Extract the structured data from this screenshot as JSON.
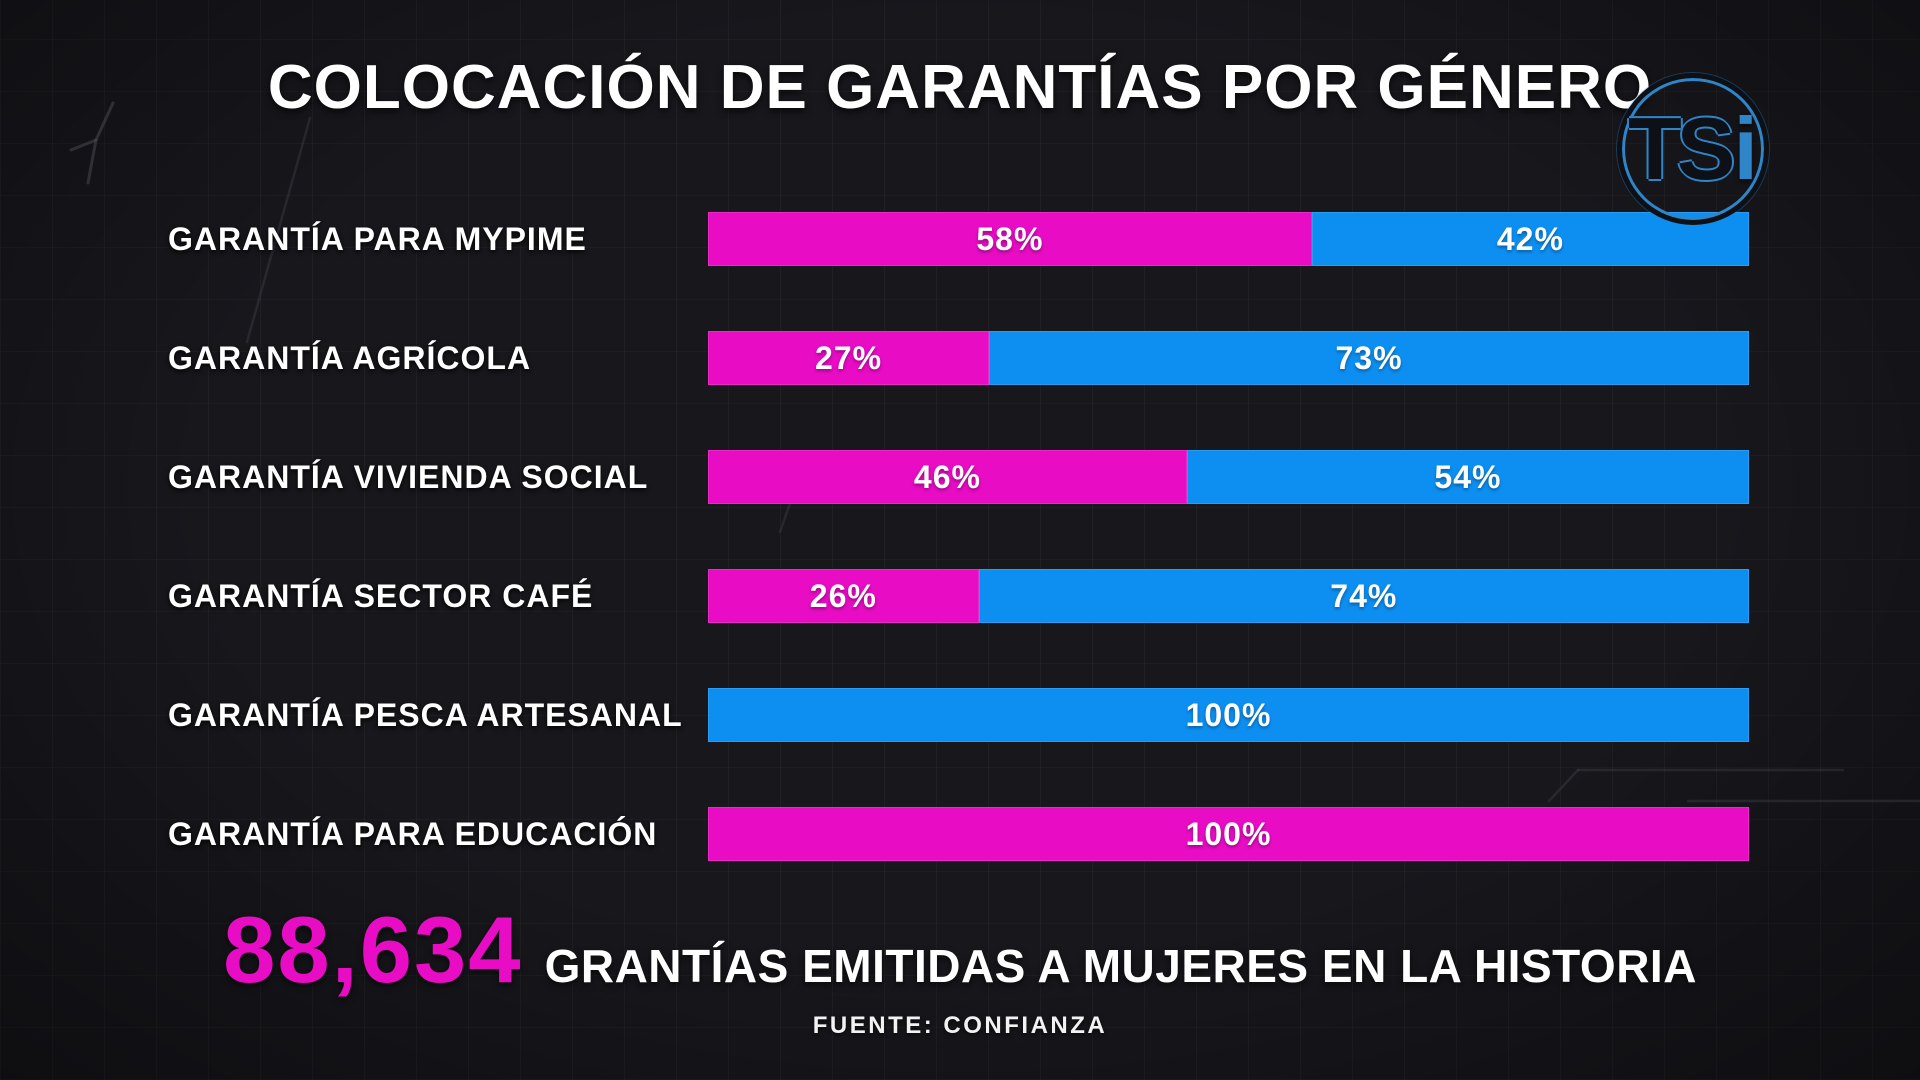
{
  "header": {
    "title": "COLOCACIÓN DE GARANTÍAS POR GÉNERO",
    "logo": {
      "ts": "TS",
      "i": "i"
    }
  },
  "chart_data": {
    "type": "bar",
    "orientation": "horizontal",
    "stacked": true,
    "units": "percent",
    "value_suffix": "%",
    "xlim": [
      0,
      100
    ],
    "grid": "off",
    "legend": "none",
    "title": "COLOCACIÓN DE GARANTÍAS POR GÉNERO",
    "categories": [
      "GARANTÍA PARA MYPIME",
      "GARANTÍA AGRÍCOLA",
      "GARANTÍA VIVIENDA SOCIAL",
      "GARANTÍA SECTOR CAFÉ",
      "GARANTÍA PESCA ARTESANAL",
      "GARANTÍA PARA EDUCACIÓN"
    ],
    "series": [
      {
        "id": "magenta",
        "color": "#e80cc4",
        "values": [
          58,
          27,
          46,
          26,
          0,
          100
        ]
      },
      {
        "id": "blue",
        "color": "#0d8ff2",
        "values": [
          42,
          73,
          54,
          74,
          100,
          0
        ]
      }
    ]
  },
  "footer": {
    "total": "88,634",
    "caption": "GRANTÍAS EMITIDAS A MUJERES EN LA HISTORIA",
    "source": "FUENTE: CONFIANZA"
  },
  "colors": {
    "magenta": "#e80cc4",
    "blue": "#0d8ff2",
    "background": "#17171c",
    "logo_accent": "#2e86c8"
  }
}
